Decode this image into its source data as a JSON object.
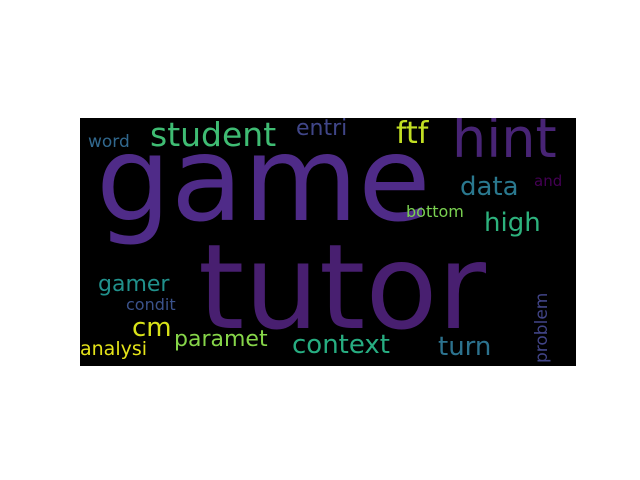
{
  "wordcloud": {
    "background": "#000000",
    "words": [
      {
        "id": "game",
        "text": "game",
        "color": "#4f2b88"
      },
      {
        "id": "tutor",
        "text": "tutor",
        "color": "#481f70"
      },
      {
        "id": "hint",
        "text": "hint",
        "color": "#482475"
      },
      {
        "id": "student",
        "text": "student",
        "color": "#3fbc73"
      },
      {
        "id": "entri",
        "text": "entri",
        "color": "#404688"
      },
      {
        "id": "ftf",
        "text": "ftf",
        "color": "#c2df23"
      },
      {
        "id": "word",
        "text": "word",
        "color": "#31688e"
      },
      {
        "id": "data",
        "text": "data",
        "color": "#2a788e"
      },
      {
        "id": "and",
        "text": "and",
        "color": "#440154"
      },
      {
        "id": "bottom",
        "text": "bottom",
        "color": "#7ad151"
      },
      {
        "id": "high",
        "text": "high",
        "color": "#2db27d"
      },
      {
        "id": "gamer",
        "text": "gamer",
        "color": "#21918c"
      },
      {
        "id": "condit",
        "text": "condit",
        "color": "#3b528b"
      },
      {
        "id": "cm",
        "text": "cm",
        "color": "#d8e219"
      },
      {
        "id": "paramet",
        "text": "paramet",
        "color": "#86d549"
      },
      {
        "id": "context",
        "text": "context",
        "color": "#27ad81"
      },
      {
        "id": "turn",
        "text": "turn",
        "color": "#2c728e"
      },
      {
        "id": "analysi",
        "text": "analysi",
        "color": "#e5e419"
      },
      {
        "id": "problem",
        "text": "problem",
        "color": "#414487"
      }
    ]
  }
}
